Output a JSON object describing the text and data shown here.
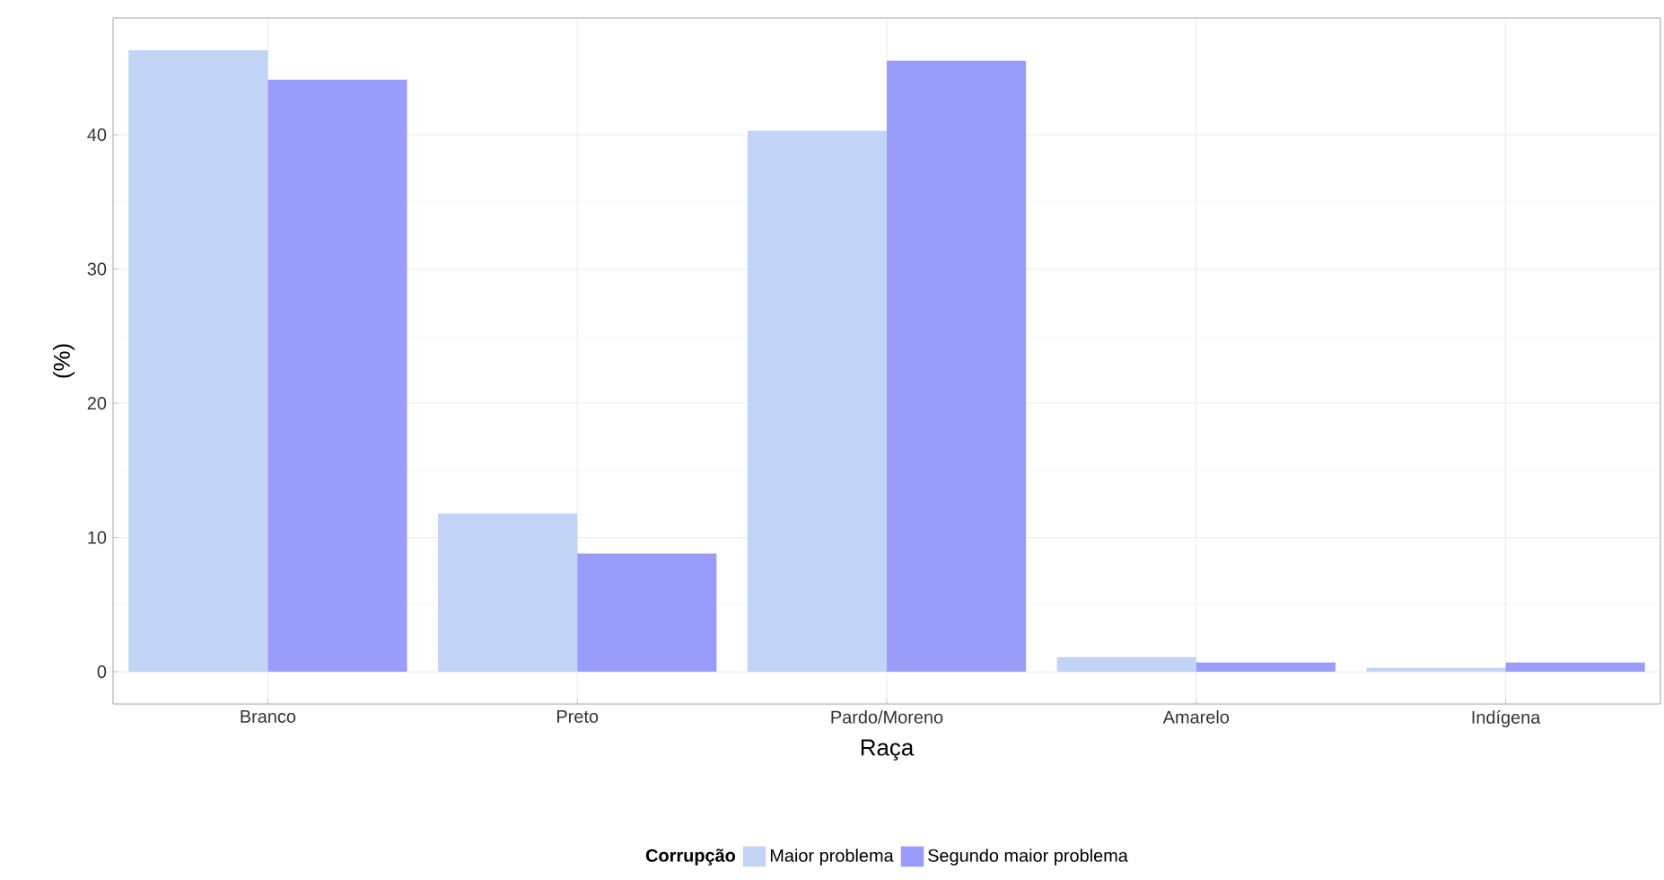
{
  "chart_data": {
    "type": "bar",
    "xlabel": "Raça",
    "ylabel": "(%)",
    "legend_title": "Corrupção",
    "categories": [
      "Branco",
      "Preto",
      "Pardo/Moreno",
      "Amarelo",
      "Indígena"
    ],
    "series": [
      {
        "name": "Maior problema",
        "color": "#c2d4f5",
        "values": [
          46.3,
          11.8,
          40.3,
          1.1,
          0.3
        ]
      },
      {
        "name": "Segundo maior problema",
        "color": "#9a9cfa",
        "values": [
          44.1,
          8.8,
          45.5,
          0.7,
          0.7
        ]
      }
    ],
    "ylim": [
      -2.4,
      48.7
    ],
    "yticks": [
      0,
      10,
      20,
      30,
      40
    ],
    "grid": true,
    "legend": "bottom"
  }
}
